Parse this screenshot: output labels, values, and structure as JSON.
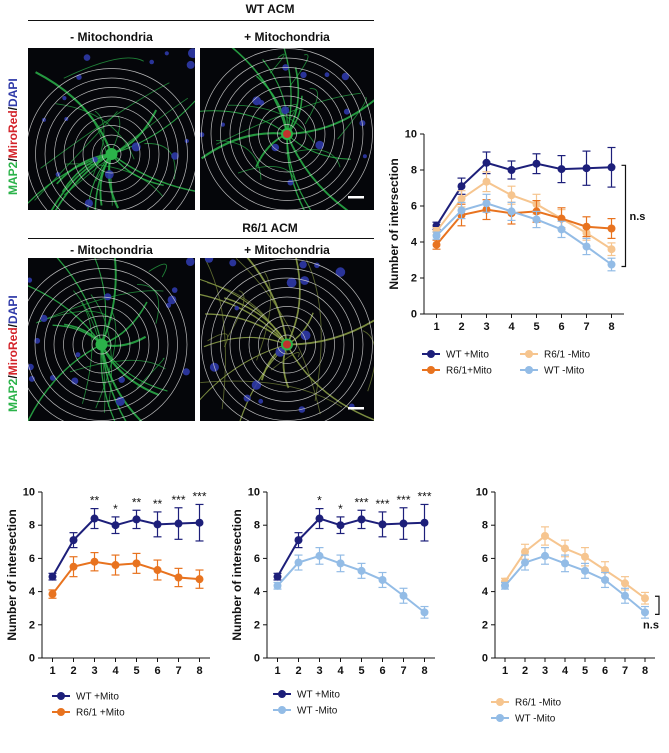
{
  "figure": {
    "wt_acm_title": "WT ACM",
    "r61_acm_title": "R6/1 ACM",
    "col_minus": "- Mitochondria",
    "col_plus": "+ Mitochondria",
    "stain_label": {
      "map2": "MAP2",
      "sep1": "/",
      "miro": "MiroRed",
      "sep2": "/",
      "dapi": "DAPI"
    }
  },
  "colors": {
    "wt_plus": "#1d1f7a",
    "r61_plus": "#e8731f",
    "r61_minus": "#f6c58f",
    "wt_minus": "#93bce6",
    "map2_green": "#2bb34a",
    "miro_red": "#d3232a",
    "dapi_blue": "#2f3aa8"
  },
  "chart_data": [
    {
      "id": "main",
      "type": "line",
      "x": [
        1,
        2,
        3,
        4,
        5,
        6,
        7,
        8
      ],
      "ylabel": "Number of intersection",
      "ylim": [
        0,
        10
      ],
      "yticks": [
        0,
        2,
        4,
        6,
        8,
        10
      ],
      "series": [
        {
          "name": "WT  +Mito",
          "color_key": "wt_plus",
          "values": [
            4.9,
            7.1,
            8.4,
            8.0,
            8.35,
            8.05,
            8.1,
            8.15
          ],
          "err": [
            0.2,
            0.45,
            0.6,
            0.5,
            0.55,
            0.75,
            0.95,
            1.1
          ]
        },
        {
          "name": "R6/1 -Mito",
          "color_key": "r61_minus",
          "values": [
            4.6,
            6.4,
            7.35,
            6.6,
            6.1,
            5.3,
            4.5,
            3.6
          ],
          "err": [
            0.2,
            0.45,
            0.55,
            0.5,
            0.55,
            0.5,
            0.4,
            0.35
          ]
        },
        {
          "name": "R6/1+Mito",
          "color_key": "r61_plus",
          "values": [
            3.85,
            5.5,
            5.8,
            5.6,
            5.7,
            5.3,
            4.85,
            4.75
          ],
          "err": [
            0.25,
            0.6,
            0.55,
            0.6,
            0.6,
            0.6,
            0.55,
            0.55
          ]
        },
        {
          "name": "WT  -Mito",
          "color_key": "wt_minus",
          "values": [
            4.35,
            5.75,
            6.15,
            5.7,
            5.25,
            4.7,
            3.75,
            2.75
          ],
          "err": [
            0.2,
            0.45,
            0.5,
            0.5,
            0.45,
            0.45,
            0.45,
            0.35
          ]
        }
      ],
      "annotation": "n.s"
    },
    {
      "id": "bl",
      "type": "line",
      "x": [
        1,
        2,
        3,
        4,
        5,
        6,
        7,
        8
      ],
      "ylabel": "Number of intersection",
      "ylim": [
        0,
        10
      ],
      "yticks": [
        0,
        2,
        4,
        6,
        8,
        10
      ],
      "series": [
        {
          "name": "WT   +Mito",
          "color_key": "wt_plus",
          "values": [
            4.9,
            7.1,
            8.4,
            8.0,
            8.35,
            8.05,
            8.1,
            8.15
          ],
          "err": [
            0.2,
            0.45,
            0.6,
            0.5,
            0.55,
            0.75,
            0.95,
            1.1
          ]
        },
        {
          "name": "R6/1 +Mito",
          "color_key": "r61_plus",
          "values": [
            3.85,
            5.5,
            5.8,
            5.6,
            5.7,
            5.3,
            4.85,
            4.75
          ],
          "err": [
            0.25,
            0.6,
            0.55,
            0.6,
            0.6,
            0.6,
            0.55,
            0.55
          ]
        }
      ],
      "stars": [
        "",
        "",
        "**",
        "*",
        "**",
        "**",
        "***",
        "***"
      ]
    },
    {
      "id": "bm",
      "type": "line",
      "x": [
        1,
        2,
        3,
        4,
        5,
        6,
        7,
        8
      ],
      "ylabel": "Number of intersection",
      "ylim": [
        0,
        10
      ],
      "yticks": [
        0,
        2,
        4,
        6,
        8,
        10
      ],
      "series": [
        {
          "name": "WT +Mito",
          "color_key": "wt_plus",
          "values": [
            4.9,
            7.1,
            8.4,
            8.0,
            8.35,
            8.05,
            8.1,
            8.15
          ],
          "err": [
            0.2,
            0.45,
            0.6,
            0.5,
            0.55,
            0.75,
            0.95,
            1.1
          ]
        },
        {
          "name": "WT -Mito",
          "color_key": "wt_minus",
          "values": [
            4.35,
            5.75,
            6.15,
            5.7,
            5.25,
            4.7,
            3.75,
            2.75
          ],
          "err": [
            0.2,
            0.45,
            0.5,
            0.5,
            0.45,
            0.45,
            0.45,
            0.35
          ]
        }
      ],
      "stars": [
        "",
        "",
        "*",
        "*",
        "***",
        "***",
        "***",
        "***"
      ]
    },
    {
      "id": "br",
      "type": "line",
      "x": [
        1,
        2,
        3,
        4,
        5,
        6,
        7,
        8
      ],
      "ylabel": "",
      "ylim": [
        0,
        10
      ],
      "yticks": [
        0,
        2,
        4,
        6,
        8,
        10
      ],
      "series": [
        {
          "name": "R6/1 -Mito",
          "color_key": "r61_minus",
          "values": [
            4.6,
            6.4,
            7.35,
            6.6,
            6.1,
            5.3,
            4.5,
            3.6
          ],
          "err": [
            0.2,
            0.45,
            0.55,
            0.5,
            0.55,
            0.5,
            0.4,
            0.35
          ]
        },
        {
          "name": "WT   -Mito",
          "color_key": "wt_minus",
          "values": [
            4.35,
            5.75,
            6.15,
            5.7,
            5.25,
            4.7,
            3.75,
            2.75
          ],
          "err": [
            0.2,
            0.45,
            0.5,
            0.5,
            0.45,
            0.45,
            0.45,
            0.35
          ]
        }
      ],
      "annotation": "n.s"
    }
  ]
}
